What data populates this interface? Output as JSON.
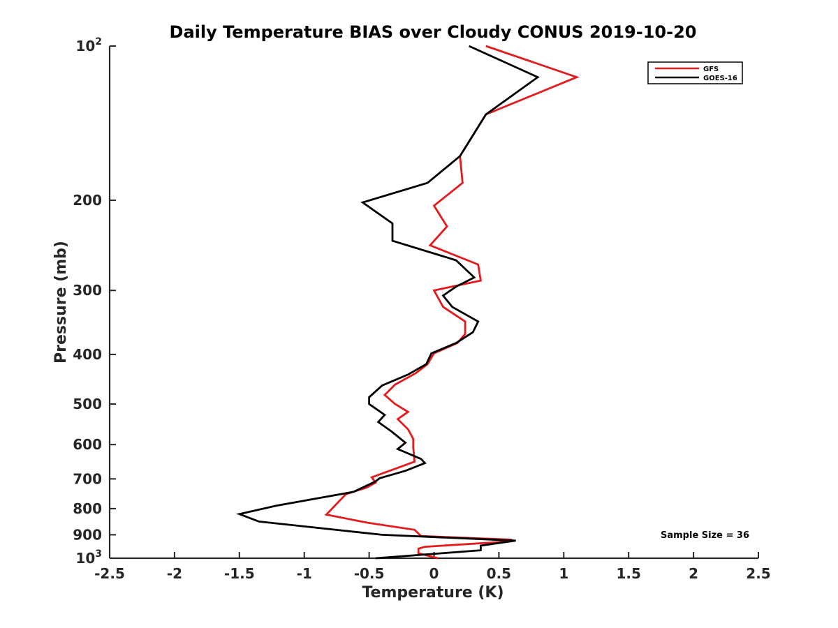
{
  "chart_data": {
    "type": "line",
    "title": "Daily Temperature BIAS over Cloudy CONUS 2019-10-20",
    "xlabel": "Temperature (K)",
    "ylabel": "Pressure (mb)",
    "xlim": [
      -2.5,
      2.5
    ],
    "ylim": [
      100,
      1000
    ],
    "yscale": "log",
    "y_reversed": true,
    "grid": false,
    "legend_position": "top-right",
    "x_ticks": [
      "-2.5",
      "-2",
      "-1.5",
      "-1",
      "-0.5",
      "0",
      "0.5",
      "1",
      "1.5",
      "2",
      "2.5"
    ],
    "y_ticks": [
      {
        "value": 100,
        "base": "10",
        "exp": "2"
      },
      {
        "value": 200,
        "label": "200"
      },
      {
        "value": 300,
        "label": "300"
      },
      {
        "value": 400,
        "label": "400"
      },
      {
        "value": 500,
        "label": "500"
      },
      {
        "value": 600,
        "label": "600"
      },
      {
        "value": 700,
        "label": "700"
      },
      {
        "value": 800,
        "label": "800"
      },
      {
        "value": 900,
        "label": "900"
      },
      {
        "value": 1000,
        "base": "10",
        "exp": "3"
      }
    ],
    "series": [
      {
        "name": "GFS",
        "color": "#e41a1c",
        "points": [
          [
            0.4,
            100
          ],
          [
            1.1,
            115
          ],
          [
            0.4,
            136
          ],
          [
            0.2,
            164
          ],
          [
            0.22,
            185
          ],
          [
            0.0,
            205
          ],
          [
            0.1,
            225
          ],
          [
            -0.03,
            245
          ],
          [
            0.34,
            267
          ],
          [
            0.36,
            287
          ],
          [
            0.0,
            300
          ],
          [
            0.07,
            323
          ],
          [
            0.24,
            345
          ],
          [
            0.24,
            365
          ],
          [
            0.18,
            380
          ],
          [
            0.0,
            398
          ],
          [
            -0.05,
            418
          ],
          [
            -0.14,
            435
          ],
          [
            -0.3,
            458
          ],
          [
            -0.38,
            480
          ],
          [
            -0.3,
            500
          ],
          [
            -0.2,
            518
          ],
          [
            -0.28,
            535
          ],
          [
            -0.2,
            560
          ],
          [
            -0.16,
            585
          ],
          [
            -0.16,
            608
          ],
          [
            -0.15,
            648
          ],
          [
            -0.48,
            695
          ],
          [
            -0.45,
            712
          ],
          [
            -0.52,
            728
          ],
          [
            -0.68,
            750
          ],
          [
            -0.83,
            822
          ],
          [
            -0.52,
            852
          ],
          [
            -0.15,
            880
          ],
          [
            -0.1,
            905
          ],
          [
            0.6,
            920
          ],
          [
            0.5,
            930
          ],
          [
            -0.07,
            950
          ],
          [
            -0.12,
            958
          ],
          [
            -0.12,
            978
          ],
          [
            0.03,
            1000
          ]
        ]
      },
      {
        "name": "GOES-16",
        "color": "#000000",
        "points": [
          [
            0.27,
            100
          ],
          [
            0.8,
            115
          ],
          [
            0.4,
            136
          ],
          [
            0.2,
            164
          ],
          [
            -0.05,
            185
          ],
          [
            -0.55,
            202
          ],
          [
            -0.32,
            222
          ],
          [
            -0.32,
            240
          ],
          [
            0.17,
            262
          ],
          [
            0.31,
            283
          ],
          [
            0.17,
            295
          ],
          [
            0.07,
            307
          ],
          [
            0.14,
            323
          ],
          [
            0.34,
            345
          ],
          [
            0.3,
            362
          ],
          [
            0.17,
            380
          ],
          [
            -0.02,
            398
          ],
          [
            -0.06,
            418
          ],
          [
            -0.2,
            438
          ],
          [
            -0.4,
            460
          ],
          [
            -0.5,
            485
          ],
          [
            -0.5,
            500
          ],
          [
            -0.38,
            525
          ],
          [
            -0.43,
            542
          ],
          [
            -0.33,
            565
          ],
          [
            -0.22,
            595
          ],
          [
            -0.28,
            612
          ],
          [
            -0.1,
            640
          ],
          [
            -0.07,
            652
          ],
          [
            -0.22,
            675
          ],
          [
            -0.42,
            698
          ],
          [
            -0.45,
            708
          ],
          [
            -0.62,
            742
          ],
          [
            -1.22,
            790
          ],
          [
            -1.5,
            820
          ],
          [
            -1.35,
            848
          ],
          [
            -0.4,
            900
          ],
          [
            0.63,
            924
          ],
          [
            0.36,
            945
          ],
          [
            0.36,
            965
          ],
          [
            0.13,
            975
          ],
          [
            -0.45,
            1000
          ]
        ]
      }
    ],
    "annotations": [
      "Sample Size = 36"
    ]
  }
}
